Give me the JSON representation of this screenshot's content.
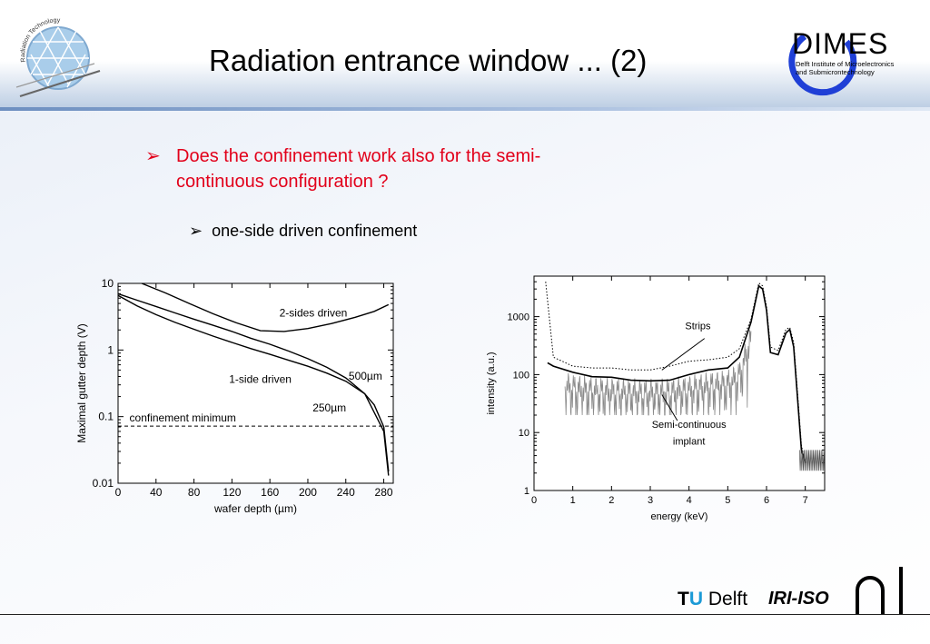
{
  "slide": {
    "title": "Radiation entrance window ... (2)",
    "bullet_1": "Does the confinement work also for the semi-continuous configuration ?",
    "bullet_2": "one-side driven confinement",
    "bullet_marker": "➢"
  },
  "logos": {
    "left_logo_text": "Radiation Technology",
    "dimes": {
      "name": "DIMES",
      "subtitle_line_1": "Delft Institute of Microelectronics",
      "subtitle_line_2": "and Submicrontechnology"
    },
    "tu_delft": {
      "t": "T",
      "u": "U",
      "delft": "Delft"
    },
    "iri_iso": "IRI-ISO"
  },
  "colors": {
    "bullet_1": "#e2001a",
    "tu_u": "#1b9ad6",
    "dimes_ring": "#1f3fd6",
    "header_band": "#b9cbe2"
  },
  "chart_data": [
    {
      "type": "line",
      "xlabel": "wafer depth (µm)",
      "ylabel": "Maximal gutter depth (V)",
      "xlim": [
        0,
        290
      ],
      "ylim": [
        0.01,
        10
      ],
      "yscale": "log",
      "xticks": [
        "0",
        "40",
        "80",
        "120",
        "160",
        "200",
        "240",
        "280"
      ],
      "yticks": [
        "0.01",
        "0.1",
        "1",
        "10"
      ],
      "annotations": [
        "2-sides driven",
        "1-side driven",
        "500µm",
        "250µm",
        "confinement minimum"
      ],
      "series": [
        {
          "x": [
            0,
            20,
            40,
            60,
            80,
            100,
            120,
            140,
            160,
            180,
            200,
            220,
            240,
            260,
            280,
            285
          ],
          "y": [
            7,
            5.6,
            4.5,
            3.6,
            2.9,
            2.35,
            1.9,
            1.5,
            1.22,
            0.96,
            0.74,
            0.55,
            0.38,
            0.22,
            0.06,
            0.013
          ]
        },
        {
          "x": [
            0,
            20,
            40,
            60,
            80,
            100,
            120,
            140,
            160,
            180,
            200,
            220,
            240,
            260,
            270,
            280,
            285
          ],
          "y": [
            6.6,
            4.6,
            3.4,
            2.6,
            2.05,
            1.62,
            1.3,
            1.05,
            0.86,
            0.7,
            0.57,
            0.45,
            0.34,
            0.22,
            0.15,
            0.07,
            0.015
          ]
        },
        {
          "x": [
            25,
            50,
            75,
            100,
            125,
            150,
            175,
            200,
            225,
            250,
            270,
            285
          ],
          "y": [
            10,
            7.2,
            5.0,
            3.5,
            2.55,
            1.95,
            1.9,
            2.1,
            2.5,
            3.1,
            3.8,
            4.8
          ]
        },
        {
          "x": [
            0,
            290
          ],
          "y": [
            0.072,
            0.072
          ]
        }
      ]
    },
    {
      "type": "line",
      "xlabel": "energy (keV)",
      "ylabel": "intensity (a.u.)",
      "xlim": [
        0,
        7.5
      ],
      "ylim": [
        1,
        5000
      ],
      "yscale": "log",
      "xticks": [
        "0",
        "1",
        "2",
        "3",
        "4",
        "5",
        "6",
        "7"
      ],
      "yticks": [
        "1",
        "10",
        "100",
        "1000"
      ],
      "annotations": [
        "Strips",
        "Semi-continuous implant"
      ],
      "series": [
        {
          "x": [
            0.35,
            0.5,
            1,
            1.5,
            2,
            2.5,
            3,
            3.5,
            4,
            4.5,
            5,
            5.3,
            5.6,
            5.8,
            5.9,
            6.0,
            6.1,
            6.3,
            6.5,
            6.6,
            6.7,
            6.8,
            6.9,
            7.0
          ],
          "y": [
            160,
            140,
            110,
            92,
            90,
            80,
            78,
            80,
            100,
            120,
            130,
            200,
            800,
            3400,
            3000,
            1300,
            240,
            220,
            520,
            600,
            300,
            40,
            5,
            3
          ]
        },
        {
          "x": [
            0.3,
            0.5,
            1,
            1.5,
            2,
            2.5,
            3,
            3.5,
            4,
            4.5,
            5,
            5.3,
            5.6,
            5.8,
            5.9,
            6.0,
            6.1,
            6.3,
            6.5,
            6.6,
            6.7,
            6.8,
            6.9,
            7.0
          ],
          "y": [
            4000,
            200,
            140,
            130,
            130,
            120,
            120,
            140,
            170,
            180,
            200,
            280,
            900,
            3800,
            3400,
            1500,
            300,
            260,
            600,
            650,
            360,
            50,
            6,
            3
          ]
        },
        {
          "x": [
            0.8,
            1,
            1.5,
            2,
            2.5,
            3,
            3.5,
            4,
            4.5,
            5,
            5.3,
            5.6
          ],
          "y": [
            60,
            55,
            50,
            48,
            46,
            45,
            47,
            52,
            60,
            65,
            90,
            400
          ]
        }
      ]
    }
  ]
}
